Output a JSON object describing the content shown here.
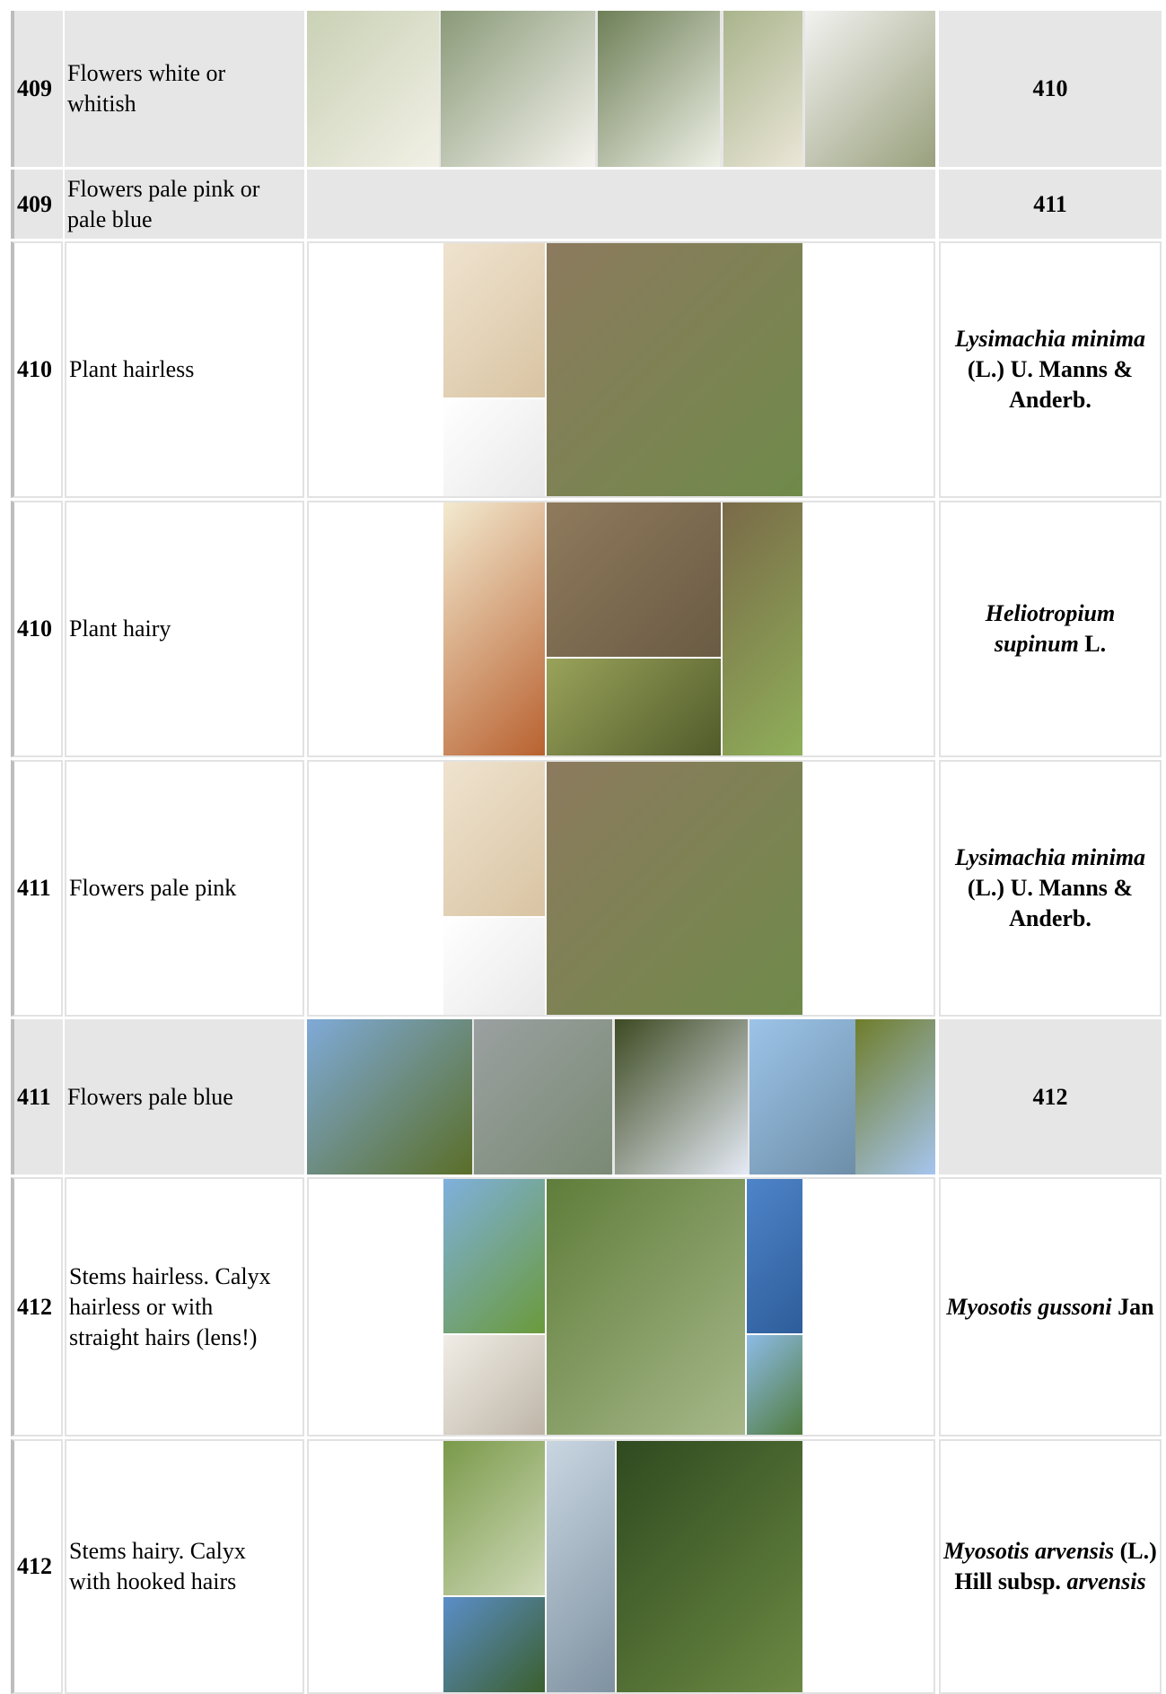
{
  "rows": [
    {
      "number": "409",
      "description": "Flowers white or whitish",
      "result": [
        {
          "text": "410",
          "italic": false
        }
      ]
    },
    {
      "number": "409",
      "description": "Flowers pale pink or pale blue",
      "result": [
        {
          "text": "411",
          "italic": false
        }
      ]
    },
    {
      "number": "410",
      "description": "Plant hairless",
      "result": [
        {
          "text": "Lysimachia minima",
          "italic": true
        },
        {
          "text": "(L.) U. Manns & Anderb.",
          "italic": false
        }
      ]
    },
    {
      "number": "410",
      "description": "Plant hairy",
      "result": [
        {
          "text": "Heliotropium supinum",
          "italic": true
        },
        {
          "text": "L.",
          "italic": false
        }
      ]
    },
    {
      "number": "411",
      "description": "Flowers pale pink",
      "result": [
        {
          "text": "Lysimachia minima",
          "italic": true
        },
        {
          "text": "(L.) U. Manns & Anderb.",
          "italic": false
        }
      ]
    },
    {
      "number": "411",
      "description": "Flowers pale blue",
      "result": [
        {
          "text": "412",
          "italic": false
        }
      ]
    },
    {
      "number": "412",
      "description": "Stems hairless. Calyx hairless or with straight hairs (lens!)",
      "result": [
        {
          "text": "Myosotis gussoni",
          "italic": true
        },
        {
          "text": "Jan",
          "italic": false
        }
      ]
    },
    {
      "number": "412",
      "description": "Stems hairy. Calyx with hooked hairs",
      "result": [
        {
          "text": "Myosotis arvensis",
          "italic": true
        },
        {
          "text": "(L.) Hill subsp.",
          "italic": false
        },
        {
          "text": "arvensis",
          "italic": true
        }
      ]
    }
  ]
}
